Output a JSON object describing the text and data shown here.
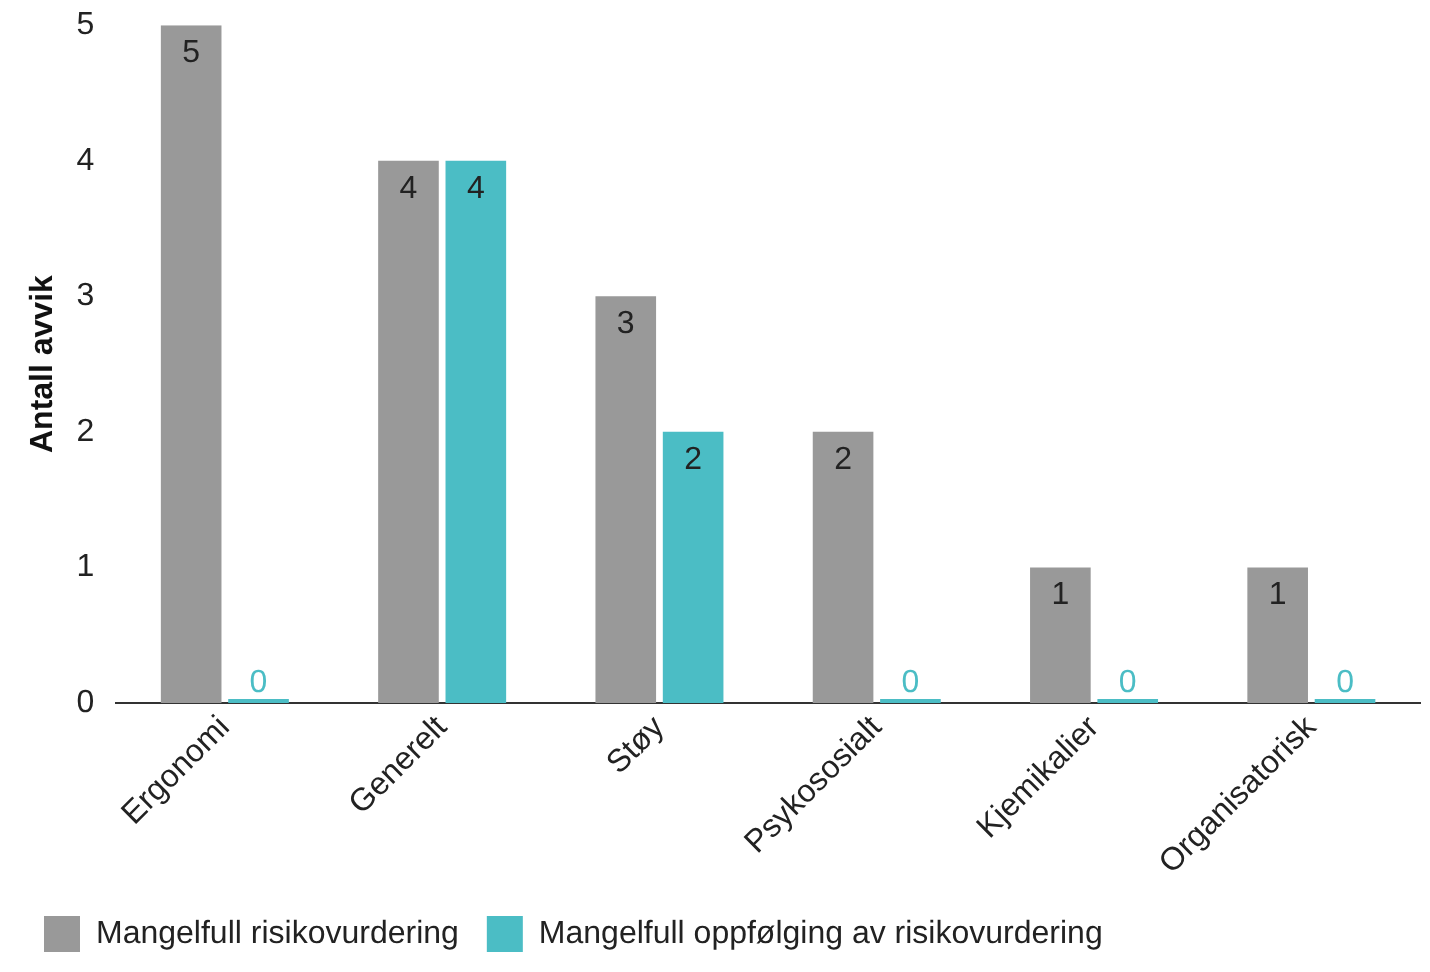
{
  "chart_data": {
    "type": "bar",
    "ylabel": "Antall avvik",
    "categories": [
      "Ergonomi",
      "Generelt",
      "Støy",
      "Psykososialt",
      "Kjemikalier",
      "Organisatorisk"
    ],
    "series": [
      {
        "name": "Mangelfull risikovurdering",
        "color": "#999999",
        "values": [
          5,
          4,
          3,
          2,
          1,
          1
        ]
      },
      {
        "name": "Mangelfull oppfølging av risikovurdering",
        "color": "#4bbdc5",
        "values": [
          0,
          4,
          2,
          0,
          0,
          0
        ]
      }
    ],
    "ylim": [
      0,
      5
    ],
    "yticks": [
      0,
      1,
      2,
      3,
      4,
      5
    ],
    "grid": false,
    "legend": "bottom left",
    "data_labels": true
  }
}
